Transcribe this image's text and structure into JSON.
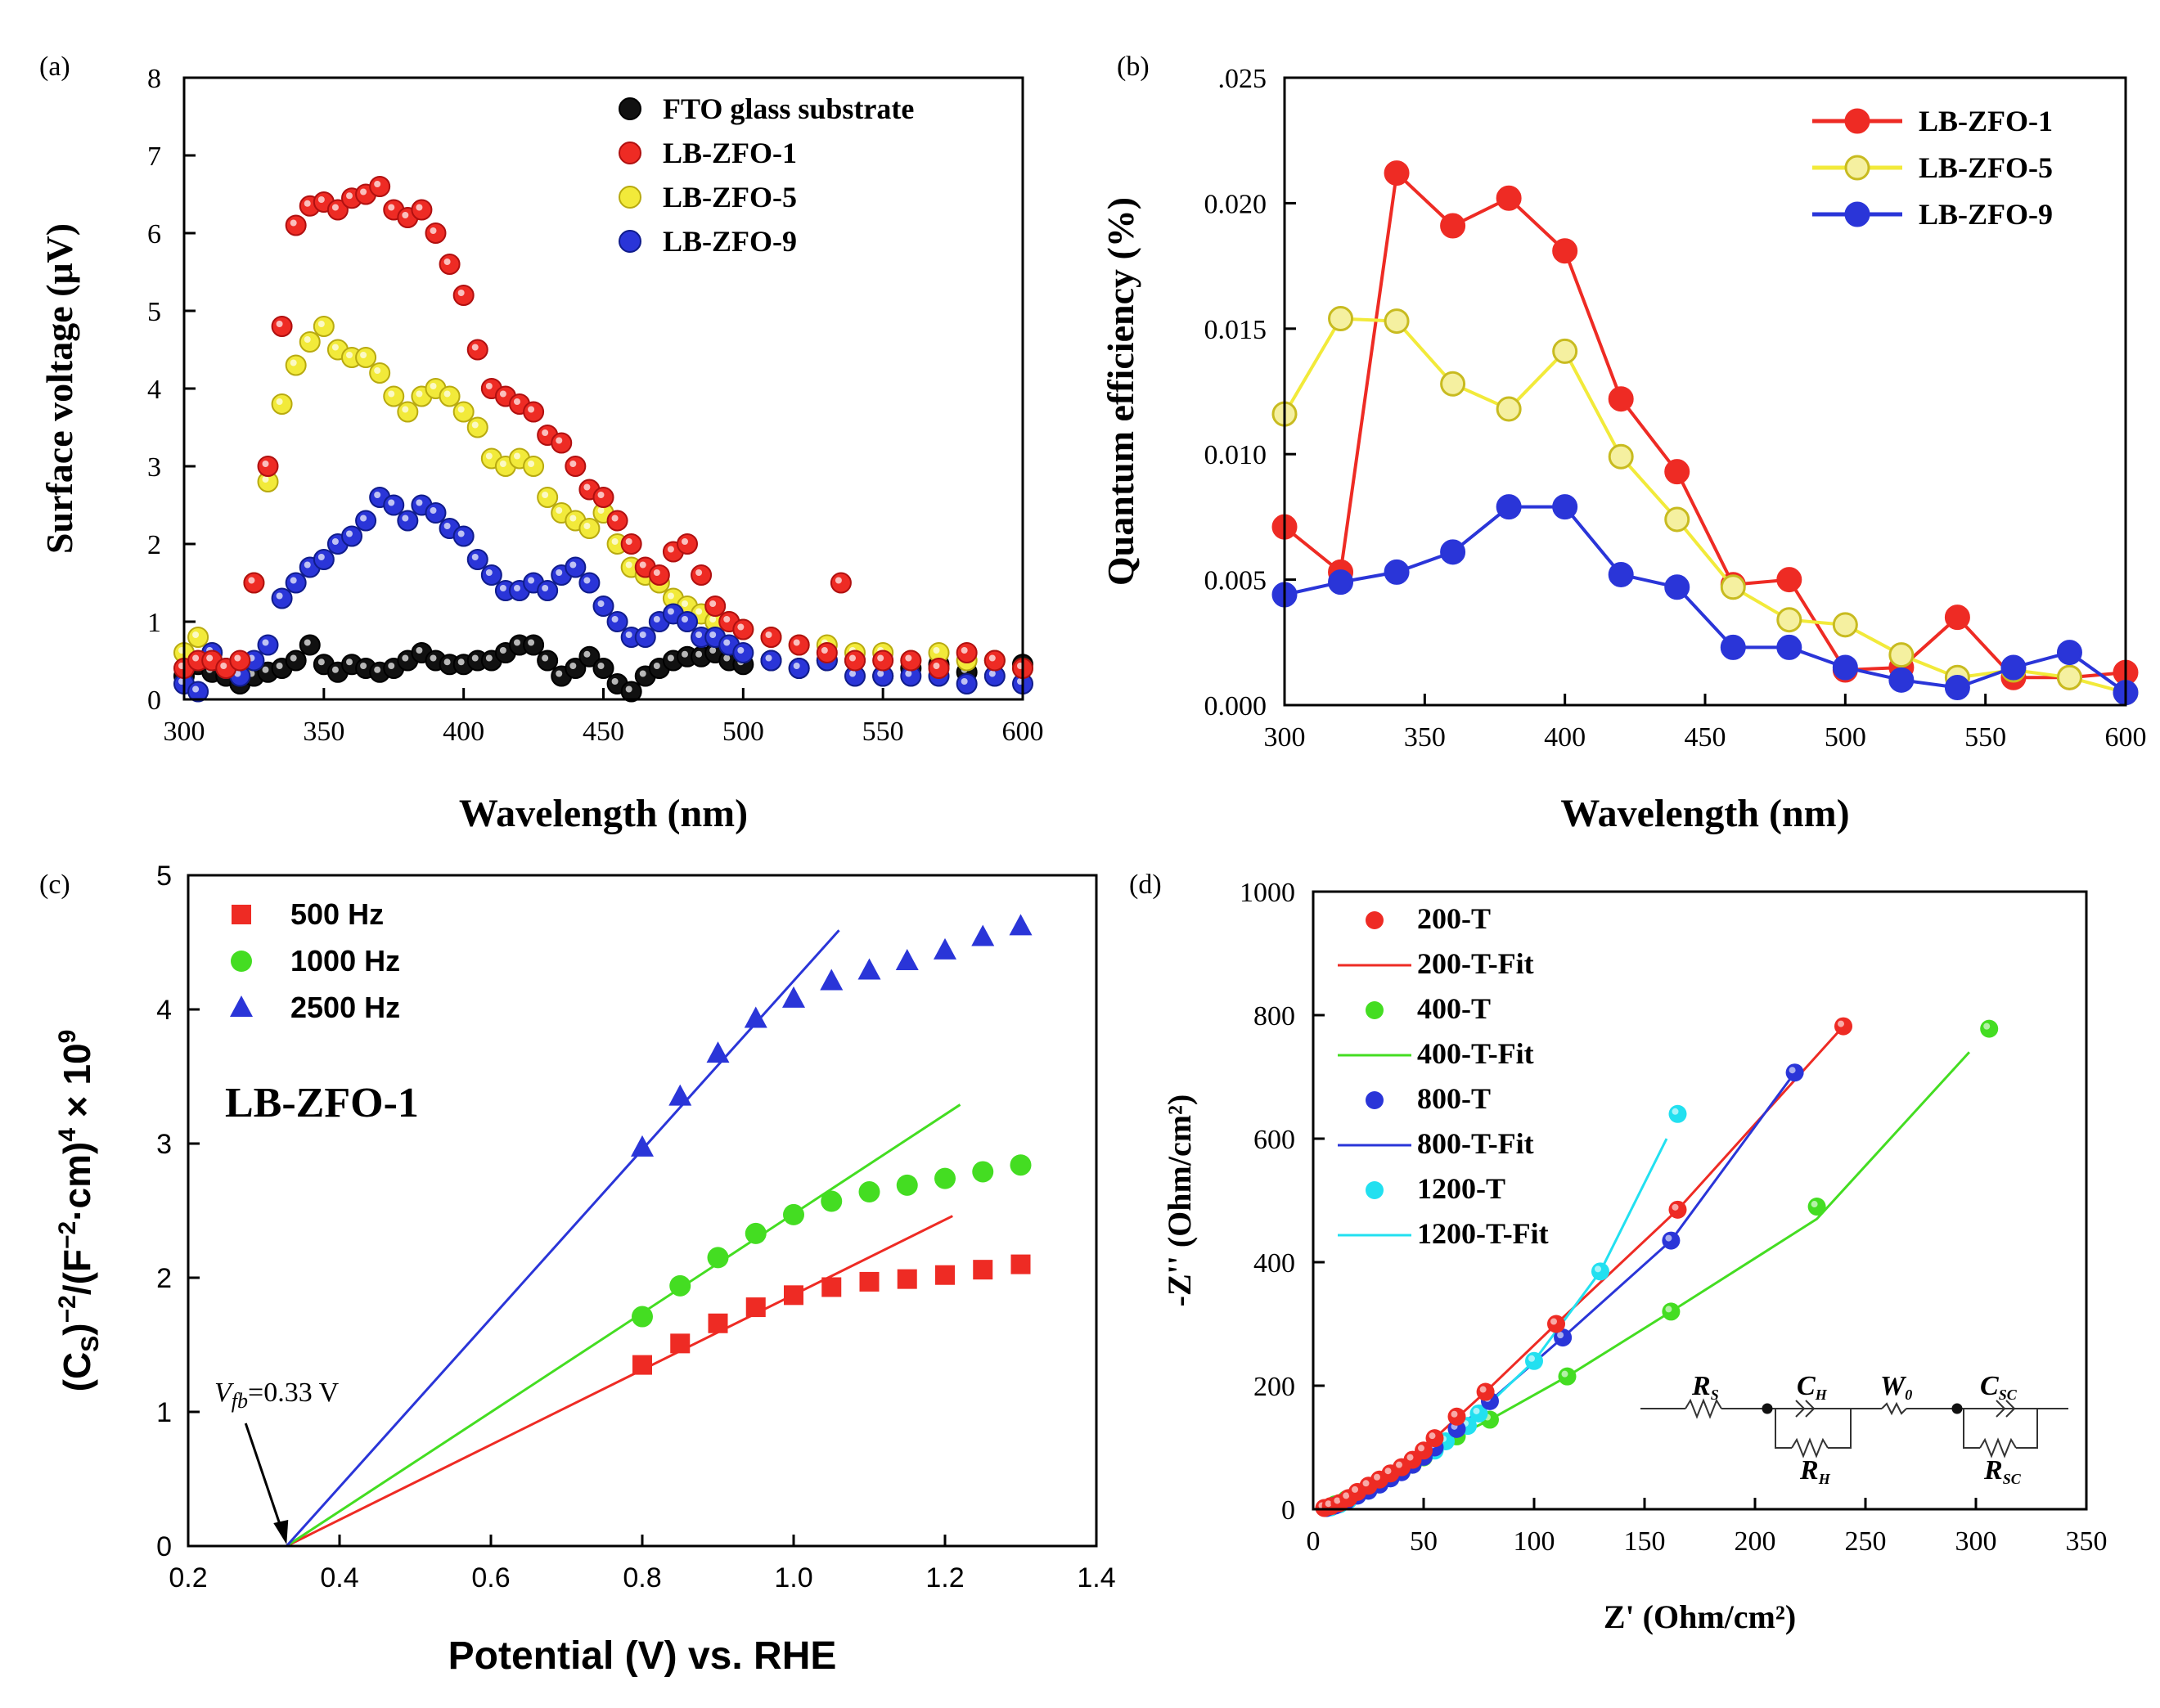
{
  "chart_data": [
    {
      "type": "scatter",
      "panel_label": "(a)",
      "title": "",
      "xlabel": "Wavelength (nm)",
      "ylabel": "Surface voltage (μV)",
      "xlim": [
        300,
        600
      ],
      "ylim": [
        0,
        8
      ],
      "xticks": [
        "300",
        "350",
        "400",
        "450",
        "500",
        "550",
        "600"
      ],
      "yticks": [
        "0",
        "1",
        "2",
        "3",
        "4",
        "5",
        "6",
        "7",
        "8"
      ],
      "legend_position": "top-right",
      "series": [
        {
          "name": "FTO glass substrate",
          "color": "#111111",
          "stroke": "#000000",
          "x": [
            300,
            305,
            310,
            315,
            320,
            325,
            330,
            335,
            340,
            345,
            350,
            355,
            360,
            365,
            370,
            375,
            380,
            385,
            390,
            395,
            400,
            405,
            410,
            415,
            420,
            425,
            430,
            435,
            440,
            445,
            450,
            455,
            460,
            465,
            470,
            475,
            480,
            485,
            490,
            495,
            500,
            510,
            520,
            530,
            540,
            550,
            560,
            570,
            580,
            590,
            600
          ],
          "y": [
            0.3,
            0.45,
            0.35,
            0.3,
            0.2,
            0.3,
            0.35,
            0.4,
            0.5,
            0.7,
            0.45,
            0.35,
            0.45,
            0.4,
            0.35,
            0.4,
            0.5,
            0.6,
            0.5,
            0.45,
            0.45,
            0.5,
            0.5,
            0.6,
            0.7,
            0.7,
            0.5,
            0.3,
            0.4,
            0.55,
            0.4,
            0.2,
            0.1,
            0.3,
            0.4,
            0.5,
            0.55,
            0.55,
            0.6,
            0.5,
            0.45,
            0.5,
            0.4,
            0.5,
            0.5,
            0.3,
            0.4,
            0.45,
            0.35,
            0.5,
            0.45
          ]
        },
        {
          "name": "LB-ZFO-1",
          "color": "#ee2b24",
          "stroke": "#b01010",
          "x": [
            300,
            305,
            310,
            315,
            320,
            325,
            330,
            335,
            340,
            345,
            350,
            355,
            360,
            365,
            370,
            375,
            380,
            385,
            390,
            395,
            400,
            405,
            410,
            415,
            420,
            425,
            430,
            435,
            440,
            445,
            450,
            455,
            460,
            465,
            470,
            475,
            480,
            485,
            490,
            495,
            500,
            510,
            520,
            530,
            535,
            540,
            550,
            560,
            570,
            580,
            590,
            600
          ],
          "y": [
            0.4,
            0.5,
            0.5,
            0.4,
            0.5,
            1.5,
            3.0,
            4.8,
            6.1,
            6.35,
            6.4,
            6.3,
            6.45,
            6.5,
            6.6,
            6.3,
            6.2,
            6.3,
            6.0,
            5.6,
            5.2,
            4.5,
            4.0,
            3.9,
            3.8,
            3.7,
            3.4,
            3.3,
            3.0,
            2.7,
            2.6,
            2.3,
            2.0,
            1.7,
            1.6,
            1.9,
            2.0,
            1.6,
            1.2,
            1.0,
            0.9,
            0.8,
            0.7,
            0.6,
            1.5,
            0.5,
            0.5,
            0.5,
            0.4,
            0.6,
            0.5,
            0.4
          ]
        },
        {
          "name": "LB-ZFO-5",
          "color": "#f2ea3a",
          "stroke": "#b8aa10",
          "x": [
            300,
            305,
            310,
            315,
            320,
            325,
            330,
            335,
            340,
            345,
            350,
            355,
            360,
            365,
            370,
            375,
            380,
            385,
            390,
            395,
            400,
            405,
            410,
            415,
            420,
            425,
            430,
            435,
            440,
            445,
            450,
            455,
            460,
            465,
            470,
            475,
            480,
            485,
            490,
            495,
            500,
            510,
            520,
            530,
            540,
            550,
            560,
            570,
            580,
            590,
            600
          ],
          "y": [
            0.6,
            0.8,
            0.6,
            0.4,
            0.4,
            1.5,
            2.8,
            3.8,
            4.3,
            4.6,
            4.8,
            4.5,
            4.4,
            4.4,
            4.2,
            3.9,
            3.7,
            3.9,
            4.0,
            3.9,
            3.7,
            3.5,
            3.1,
            3.0,
            3.1,
            3.0,
            2.6,
            2.4,
            2.3,
            2.2,
            2.4,
            2.0,
            1.7,
            1.6,
            1.5,
            1.3,
            1.2,
            1.1,
            1.0,
            1.0,
            0.9,
            0.8,
            0.7,
            0.7,
            0.6,
            0.6,
            0.5,
            0.6,
            0.5,
            0.5,
            0.4
          ]
        },
        {
          "name": "LB-ZFO-9",
          "color": "#2a35d8",
          "stroke": "#101c8c",
          "x": [
            300,
            305,
            310,
            315,
            320,
            325,
            330,
            335,
            340,
            345,
            350,
            355,
            360,
            365,
            370,
            375,
            380,
            385,
            390,
            395,
            400,
            405,
            410,
            415,
            420,
            425,
            430,
            435,
            440,
            445,
            450,
            455,
            460,
            465,
            470,
            475,
            480,
            485,
            490,
            495,
            500,
            510,
            520,
            530,
            540,
            550,
            560,
            570,
            580,
            590,
            600
          ],
          "y": [
            0.2,
            0.1,
            0.6,
            0.4,
            0.3,
            0.5,
            0.7,
            1.3,
            1.5,
            1.7,
            1.8,
            2.0,
            2.1,
            2.3,
            2.6,
            2.5,
            2.3,
            2.5,
            2.4,
            2.2,
            2.1,
            1.8,
            1.6,
            1.4,
            1.4,
            1.5,
            1.4,
            1.6,
            1.7,
            1.5,
            1.2,
            1.0,
            0.8,
            0.8,
            1.0,
            1.1,
            1.0,
            0.8,
            0.8,
            0.7,
            0.6,
            0.5,
            0.4,
            0.5,
            0.3,
            0.3,
            0.3,
            0.3,
            0.2,
            0.3,
            0.2
          ]
        }
      ]
    },
    {
      "type": "line",
      "panel_label": "(b)",
      "title": "",
      "xlabel": "Wavelength (nm)",
      "ylabel": "Quantum efficiency (%)",
      "xlim": [
        300,
        600
      ],
      "ylim": [
        0,
        0.025
      ],
      "xticks": [
        "300",
        "350",
        "400",
        "450",
        "500",
        "550",
        "600"
      ],
      "yticks": [
        "0.000",
        "0.005",
        "0.010",
        "0.015",
        "0.020",
        ".025"
      ],
      "legend_position": "top-right",
      "series": [
        {
          "name": "LB-ZFO-1",
          "color": "#ee2b24",
          "fill": "#ee2b24",
          "x": [
            300,
            320,
            340,
            360,
            380,
            400,
            420,
            440,
            460,
            480,
            500,
            520,
            540,
            560,
            580,
            600
          ],
          "y": [
            0.0071,
            0.0053,
            0.0212,
            0.0191,
            0.0202,
            0.0181,
            0.0122,
            0.0093,
            0.0048,
            0.005,
            0.0014,
            0.0015,
            0.0035,
            0.0011,
            0.0011,
            0.0013
          ]
        },
        {
          "name": "LB-ZFO-5",
          "color": "#f2ea3a",
          "fill": "#f5f0a0",
          "x": [
            300,
            320,
            340,
            360,
            380,
            400,
            420,
            440,
            460,
            480,
            500,
            520,
            540,
            560,
            580,
            600
          ],
          "y": [
            0.0116,
            0.0154,
            0.0153,
            0.0128,
            0.0118,
            0.0141,
            0.0099,
            0.0074,
            0.0047,
            0.0034,
            0.0032,
            0.002,
            0.0011,
            0.0014,
            0.0011,
            0.0005
          ]
        },
        {
          "name": "LB-ZFO-9",
          "color": "#2a35d8",
          "fill": "#2a35d8",
          "x": [
            300,
            320,
            340,
            360,
            380,
            400,
            420,
            440,
            460,
            480,
            500,
            520,
            540,
            560,
            580,
            600
          ],
          "y": [
            0.0044,
            0.0049,
            0.0053,
            0.0061,
            0.0079,
            0.0079,
            0.0052,
            0.0047,
            0.0023,
            0.0023,
            0.0015,
            0.001,
            0.0007,
            0.0015,
            0.0021,
            0.0005
          ]
        }
      ]
    },
    {
      "type": "scatter",
      "panel_label": "(c)",
      "title": "",
      "xlabel": "Potential (V) vs. RHE",
      "ylabel": "(C_S)^-2/(F^-2·cm)^4 × 10^9",
      "ylabel_parts": [
        "(C",
        "S",
        ")",
        "−2",
        "/(F",
        "−2",
        "·cm",
        ")",
        "4",
        " × 10",
        "9"
      ],
      "xlim": [
        0.2,
        1.4
      ],
      "ylim": [
        0,
        5
      ],
      "xticks": [
        "0.2",
        "0.4",
        "0.6",
        "0.8",
        "1.0",
        "1.2",
        "1.4"
      ],
      "yticks": [
        "0",
        "1",
        "2",
        "3",
        "4",
        "5"
      ],
      "legend_position": "top-left",
      "sample_label": "LB-ZFO-1",
      "annotation": {
        "label": "V",
        "sub": "fb",
        "rest": "=0.33 V",
        "x": 0.33,
        "y": 0
      },
      "series": [
        {
          "name": "500 Hz",
          "marker": "square",
          "color": "#ee2b24",
          "x": [
            0.8,
            0.85,
            0.9,
            0.95,
            1.0,
            1.05,
            1.1,
            1.15,
            1.2,
            1.25,
            1.3
          ],
          "y": [
            1.35,
            1.51,
            1.66,
            1.78,
            1.87,
            1.93,
            1.97,
            1.99,
            2.02,
            2.06,
            2.1
          ],
          "fit": {
            "x": [
              0.33,
              1.21
            ],
            "y": [
              0,
              2.46
            ]
          }
        },
        {
          "name": "1000 Hz",
          "marker": "circle",
          "color": "#44dd22",
          "x": [
            0.8,
            0.85,
            0.9,
            0.95,
            1.0,
            1.05,
            1.1,
            1.15,
            1.2,
            1.25,
            1.3
          ],
          "y": [
            1.71,
            1.94,
            2.15,
            2.33,
            2.47,
            2.57,
            2.64,
            2.69,
            2.74,
            2.79,
            2.84
          ],
          "fit": {
            "x": [
              0.33,
              1.22
            ],
            "y": [
              0,
              3.29
            ]
          }
        },
        {
          "name": "2500 Hz",
          "marker": "triangle",
          "color": "#2a35d8",
          "x": [
            0.8,
            0.85,
            0.9,
            0.95,
            1.0,
            1.05,
            1.1,
            1.15,
            1.2,
            1.25,
            1.3
          ],
          "y": [
            2.97,
            3.35,
            3.67,
            3.93,
            4.08,
            4.21,
            4.29,
            4.36,
            4.44,
            4.54,
            4.62
          ],
          "fit": {
            "x": [
              0.33,
              1.06
            ],
            "y": [
              0,
              4.59
            ]
          }
        }
      ]
    },
    {
      "type": "scatter",
      "panel_label": "(d)",
      "title": "",
      "xlabel": "Z' (Ohm/cm²)",
      "ylabel": "-Z'' (Ohm/cm²)",
      "xlim": [
        0,
        350
      ],
      "ylim": [
        0,
        1000
      ],
      "xticks": [
        "0",
        "50",
        "100",
        "150",
        "200",
        "250",
        "300",
        "350"
      ],
      "yticks": [
        "0",
        "200",
        "400",
        "600",
        "800",
        "1000"
      ],
      "legend_position": "top-left",
      "circuit_labels": {
        "rs": "R",
        "rs_sub": "S",
        "ch": "C",
        "ch_sub": "H",
        "wo": "W",
        "wo_sub": "0",
        "csc": "C",
        "csc_sub": "SC",
        "rh": "R",
        "rh_sub": "H",
        "rsc": "R",
        "rsc_sub": "SC"
      },
      "series": [
        {
          "name": "200-T",
          "fit_name": "200-T-Fit",
          "color": "#ee2b24",
          "x": [
            5,
            8,
            12,
            16,
            20,
            25,
            30,
            35,
            40,
            45,
            50,
            55,
            65,
            78,
            110,
            165,
            240
          ],
          "y": [
            2,
            5,
            10,
            18,
            28,
            38,
            48,
            58,
            68,
            80,
            95,
            115,
            150,
            190,
            300,
            485,
            782
          ],
          "fit": {
            "x": [
              5,
              20,
              40,
              55,
              78,
              110,
              165,
              240
            ],
            "y": [
              2,
              28,
              68,
              115,
              190,
              300,
              485,
              782
            ]
          }
        },
        {
          "name": "400-T",
          "fit_name": "400-T-Fit",
          "color": "#44dd22",
          "x": [
            6,
            10,
            15,
            20,
            25,
            30,
            35,
            40,
            45,
            50,
            55,
            65,
            80,
            115,
            162,
            228,
            306
          ],
          "y": [
            2,
            8,
            16,
            25,
            33,
            42,
            52,
            62,
            72,
            84,
            96,
            118,
            145,
            215,
            320,
            490,
            778
          ],
          "fit": {
            "x": [
              6,
              20,
              40,
              65,
              80,
              115,
              162,
              228,
              297
            ],
            "y": [
              2,
              25,
              62,
              118,
              145,
              215,
              320,
              470,
              740
            ]
          }
        },
        {
          "name": "800-T",
          "fit_name": "800-T-Fit",
          "color": "#2a35d8",
          "x": [
            6,
            10,
            15,
            20,
            25,
            30,
            35,
            40,
            45,
            50,
            55,
            65,
            80,
            113,
            162,
            218
          ],
          "y": [
            2,
            6,
            14,
            22,
            30,
            40,
            50,
            60,
            72,
            85,
            100,
            130,
            175,
            278,
            435,
            707
          ],
          "fit": {
            "x": [
              6,
              20,
              40,
              55,
              80,
              113,
              162,
              218
            ],
            "y": [
              2,
              22,
              60,
              100,
              175,
              278,
              435,
              707
            ]
          }
        },
        {
          "name": "1200-T",
          "fit_name": "1200-T-Fit",
          "color": "#22e0f0",
          "x": [
            8,
            12,
            16,
            20,
            25,
            30,
            35,
            40,
            45,
            50,
            55,
            60,
            70,
            75,
            100,
            130,
            165
          ],
          "y": [
            3,
            8,
            15,
            22,
            30,
            40,
            50,
            62,
            74,
            85,
            95,
            110,
            135,
            155,
            240,
            385,
            640
          ],
          "fit": {
            "x": [
              8,
              20,
              40,
              60,
              75,
              100,
              130,
              160
            ],
            "y": [
              3,
              22,
              62,
              110,
              155,
              240,
              385,
              600
            ]
          }
        }
      ]
    }
  ]
}
